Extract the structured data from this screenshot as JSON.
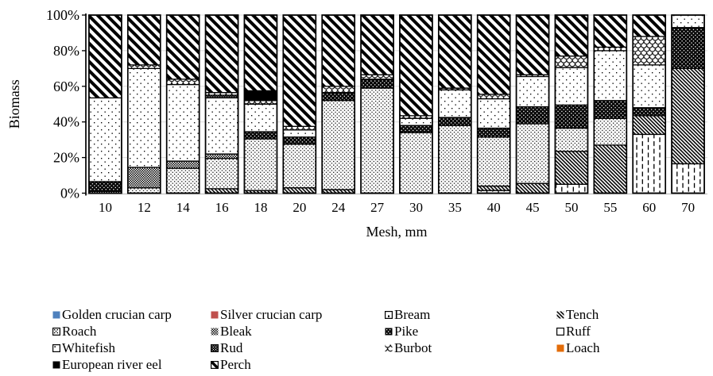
{
  "chart_data": {
    "type": "bar",
    "stacked": true,
    "percent_stacked": true,
    "title": "",
    "xlabel": "Mesh, mm",
    "ylabel": "Biomass",
    "ylim": [
      0,
      100
    ],
    "ytick_labels": [
      "0%",
      "20%",
      "40%",
      "60%",
      "80%",
      "100%"
    ],
    "ytick_values": [
      0,
      20,
      40,
      60,
      80,
      100
    ],
    "grid": "horizontal-light",
    "legend_position": "bottom",
    "legend_columns": 4,
    "categories": [
      "10",
      "12",
      "14",
      "16",
      "18",
      "20",
      "24",
      "27",
      "30",
      "35",
      "40",
      "45",
      "50",
      "55",
      "60",
      "70"
    ],
    "series": [
      {
        "name": "Golden crucian carp",
        "pattern": "solid",
        "color": "#4F81BD",
        "values": [
          0,
          0,
          0,
          0,
          0,
          0,
          0,
          0,
          0,
          0,
          0,
          0,
          0,
          0,
          0,
          0
        ]
      },
      {
        "name": "Silver crucian carp",
        "pattern": "solid",
        "color": "#C0504D",
        "values": [
          0,
          0,
          0,
          0,
          0,
          0,
          0,
          0,
          0,
          0,
          0,
          0,
          0,
          0,
          0,
          0
        ]
      },
      {
        "name": "Bream",
        "pattern": "vertical-dashes",
        "color": "#000000",
        "values": [
          0,
          0,
          0,
          0,
          0,
          0,
          0,
          0,
          0,
          0,
          1.5,
          0,
          5,
          0,
          33,
          16.5
        ]
      },
      {
        "name": "Tench",
        "pattern": "thin-diagonal",
        "color": "#000000",
        "values": [
          0,
          0,
          0,
          2.5,
          1.5,
          3,
          2,
          0,
          0,
          0,
          2.5,
          5.5,
          18.5,
          27,
          10.5,
          53.5
        ]
      },
      {
        "name": "Roach",
        "pattern": "dots-dense",
        "color": "#000000",
        "values": [
          0,
          3,
          14,
          17,
          29,
          24.5,
          50,
          59,
          34,
          38,
          27.5,
          33.5,
          13,
          15,
          0,
          0
        ]
      },
      {
        "name": "Bleak",
        "pattern": "checker",
        "color": "#000000",
        "values": [
          1,
          11.5,
          4,
          2.5,
          0,
          0,
          0,
          0,
          0,
          0,
          0,
          0,
          0,
          0,
          0,
          0
        ]
      },
      {
        "name": "Pike",
        "pattern": "black-dots",
        "color": "#000000",
        "values": [
          5.5,
          0,
          0,
          0,
          4,
          4,
          4.5,
          5,
          4,
          4.5,
          5,
          9.5,
          13,
          10,
          4.5,
          23
        ]
      },
      {
        "name": "Ruff",
        "pattern": "plain-white",
        "color": "#000000",
        "values": [
          0,
          0,
          0,
          0,
          0,
          0,
          0,
          0,
          0,
          0,
          0,
          0,
          0,
          0,
          0,
          0
        ]
      },
      {
        "name": "Whitefish",
        "pattern": "dots-sparse",
        "color": "#000000",
        "values": [
          47,
          55.5,
          43,
          31.5,
          15.5,
          4,
          0,
          0,
          4,
          15.5,
          16.5,
          17,
          21,
          28,
          24,
          7
        ]
      },
      {
        "name": "Rud",
        "pattern": "black-checker",
        "color": "#000000",
        "values": [
          0,
          0,
          0,
          1.5,
          0,
          0,
          0,
          0,
          0,
          0,
          0,
          0,
          0,
          0,
          0,
          0
        ]
      },
      {
        "name": "Burbot",
        "pattern": "scales",
        "color": "#000000",
        "values": [
          0,
          2,
          3,
          1.5,
          2,
          2,
          3.5,
          2.5,
          1.5,
          1,
          2.5,
          1,
          6.5,
          2,
          16,
          0
        ]
      },
      {
        "name": "Loach",
        "pattern": "solid",
        "color": "#E36C09",
        "values": [
          0,
          0,
          0,
          0,
          0,
          0,
          0,
          0,
          0,
          0,
          0,
          0,
          0,
          0,
          0,
          0
        ]
      },
      {
        "name": "European river eel",
        "pattern": "solid-black",
        "color": "#000000",
        "values": [
          0,
          0,
          0,
          0,
          5.5,
          0,
          0,
          0,
          0,
          0,
          0,
          0,
          0,
          0,
          0,
          0
        ]
      },
      {
        "name": "Perch",
        "pattern": "thick-diagonal",
        "color": "#000000",
        "values": [
          46.5,
          28,
          36,
          43.5,
          42.5,
          62.5,
          40,
          33.5,
          56.5,
          41,
          44.5,
          33.5,
          23,
          18,
          12,
          0
        ]
      }
    ]
  }
}
